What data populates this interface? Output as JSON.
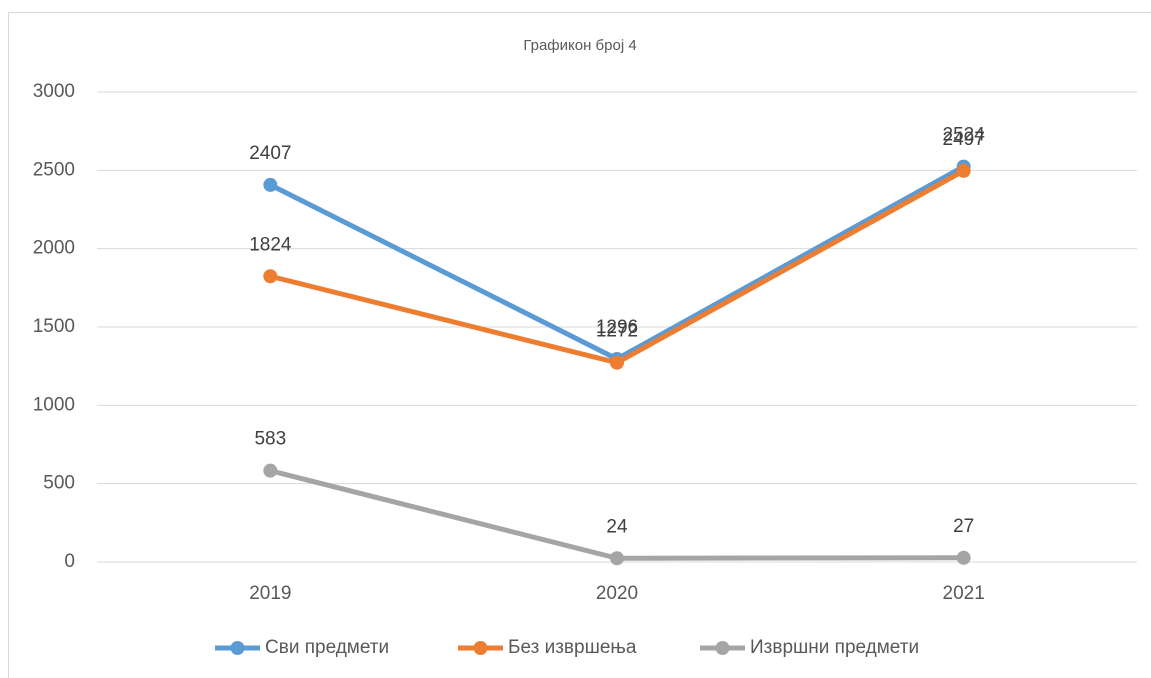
{
  "chart_data": {
    "type": "line",
    "title": "Графикон број 4",
    "categories": [
      "2019",
      "2020",
      "2021"
    ],
    "series": [
      {
        "name": "Сви предмети",
        "color": "#5b9bd5",
        "values": [
          2407,
          1296,
          2524
        ]
      },
      {
        "name": "Без извршења",
        "color": "#ed7d31",
        "values": [
          1824,
          1272,
          2497
        ]
      },
      {
        "name": "Извршни предмети",
        "color": "#a5a5a5",
        "values": [
          583,
          24,
          27
        ]
      }
    ],
    "ylim": [
      0,
      3000
    ],
    "yticks": [
      0,
      500,
      1000,
      1500,
      2000,
      2500,
      3000
    ],
    "grid": true,
    "legend": "bottom"
  }
}
